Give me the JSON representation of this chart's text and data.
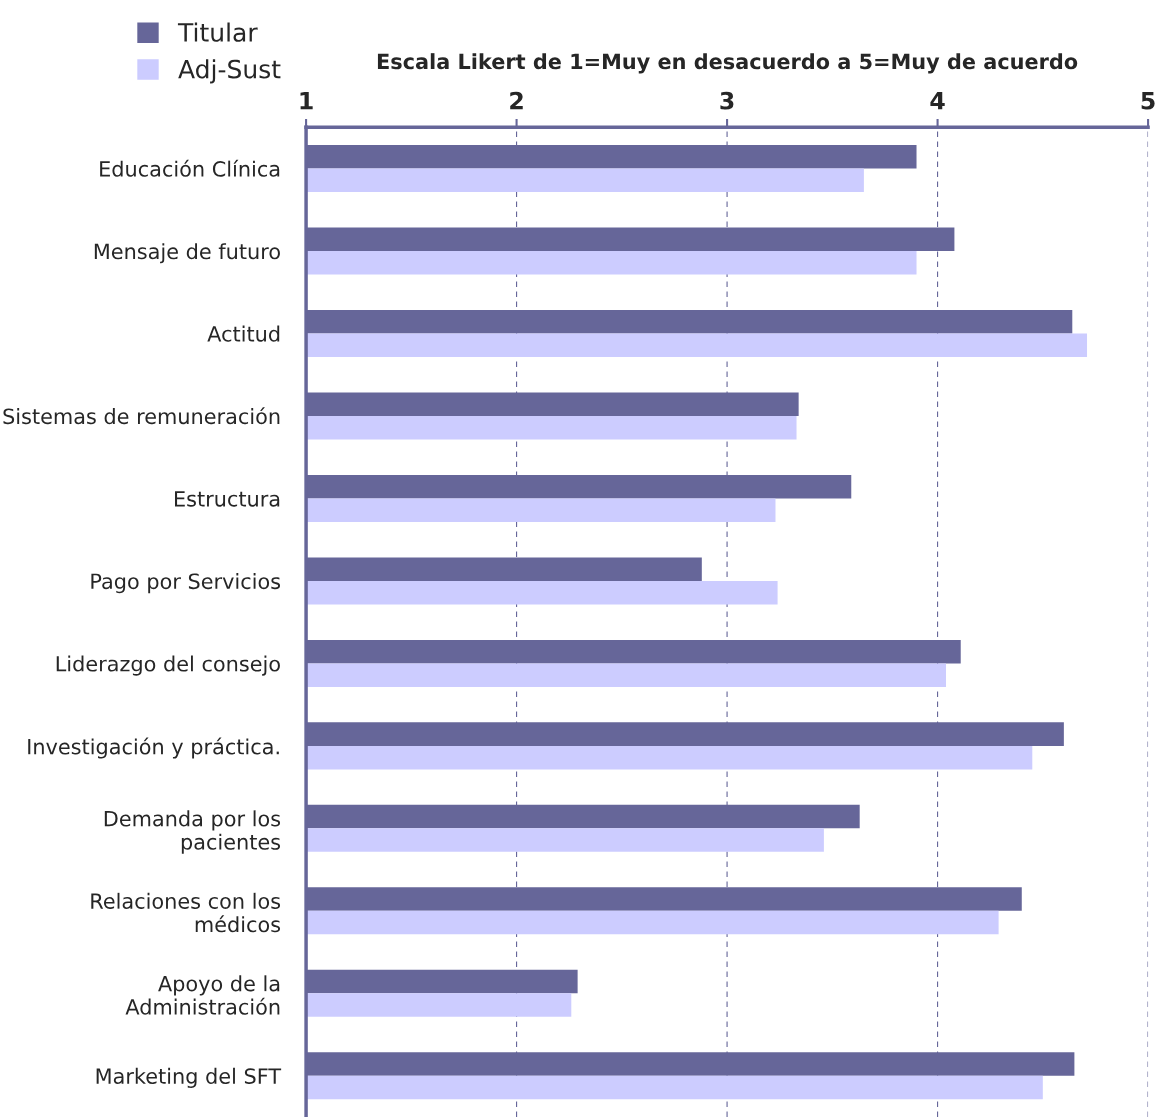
{
  "chart_data": {
    "type": "bar",
    "orientation": "horizontal",
    "title": "Escala Likert de 1=Muy en desacuerdo a 5=Muy de acuerdo",
    "categories": [
      "Educación Clínica",
      "Mensaje de futuro",
      "Actitud",
      "Sistemas de remuneración",
      "Estructura",
      "Pago por Servicios",
      "Liderazgo del consejo",
      "Investigación y práctica.",
      "Demanda por los\npacientes",
      "Relaciones con los\nmédicos",
      "Apoyo de la\nAdministración",
      "Marketing del SFT"
    ],
    "series": [
      {
        "name": "Titular",
        "color": "#666699",
        "values": [
          3.9,
          4.08,
          4.64,
          3.34,
          3.59,
          2.88,
          4.11,
          4.6,
          3.63,
          4.4,
          2.29,
          4.65
        ]
      },
      {
        "name": "Adj-Sust",
        "color": "#ccccff",
        "values": [
          3.65,
          3.9,
          4.71,
          3.33,
          3.23,
          3.24,
          4.04,
          4.45,
          3.46,
          4.29,
          2.26,
          4.5
        ]
      }
    ],
    "xlim": [
      1,
      5
    ],
    "xticks": [
      1,
      2,
      3,
      4,
      5
    ],
    "grid": "x",
    "legend": "top left"
  }
}
